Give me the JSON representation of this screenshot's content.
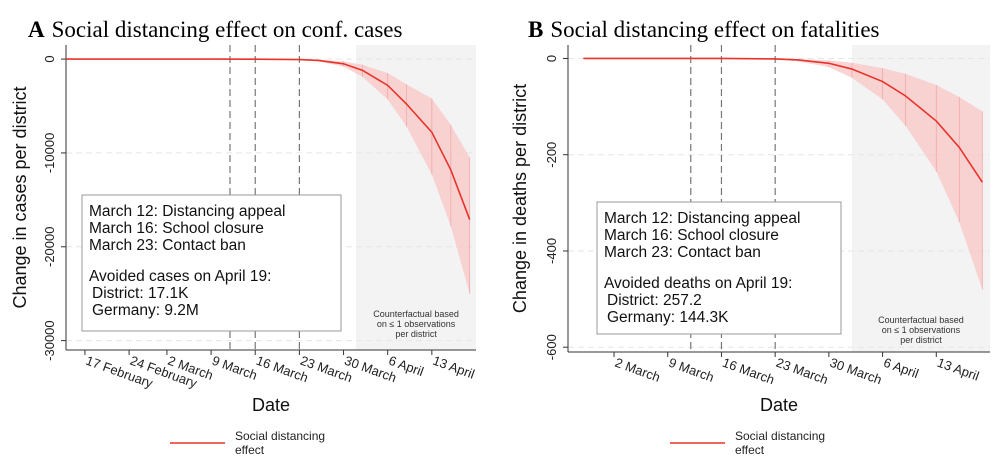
{
  "chart_data": [
    {
      "type": "line",
      "label": "A",
      "title": "Social distancing effect on conf. cases",
      "xlabel": "Date",
      "ylabel": "Change in cases per district",
      "xlim": [
        "14 February",
        "20 April"
      ],
      "ylim": [
        -31000,
        1500
      ],
      "xticks": [
        "17 February",
        "24 February",
        "2 March",
        "9 March",
        "16 March",
        "23 March",
        "30 March",
        "6 April",
        "13 April"
      ],
      "yticks": [
        0,
        -10000,
        -20000,
        -30000
      ],
      "grid": true,
      "x": [
        "14 February",
        "9 March",
        "16 March",
        "23 March",
        "26 March",
        "30 March",
        "2 April",
        "6 April",
        "9 April",
        "13 April",
        "16 April",
        "19 April"
      ],
      "series": [
        {
          "name": "Social distancing effect",
          "color": "#e8332a",
          "values": [
            0,
            0,
            -10,
            -50,
            -150,
            -500,
            -1200,
            -2800,
            -4800,
            -7800,
            -11800,
            -17100
          ]
        }
      ],
      "band": {
        "color": "#f9c6c6",
        "lower": [
          0,
          0,
          -20,
          -80,
          -250,
          -800,
          -1900,
          -4300,
          -7200,
          -12300,
          -17800,
          -25000
        ],
        "upper": [
          0,
          0,
          0,
          -20,
          -60,
          -250,
          -600,
          -1500,
          -2700,
          -4200,
          -7000,
          -10500
        ]
      },
      "events": [
        "12 March",
        "16 March",
        "23 March"
      ],
      "events_text": [
        "March 12: Distancing appeal",
        "March 16: School closure",
        "March 23: Contact ban"
      ],
      "summary": [
        "Avoided cases on April 19:",
        "District:  17.1K",
        "Germany: 9.2M"
      ],
      "shade_from": "1 April",
      "shade_note": [
        "Counterfactual based",
        "on ≤ 1 observations",
        "per district"
      ]
    },
    {
      "type": "line",
      "label": "B",
      "title": "Social distancing effect on fatalities",
      "xlabel": "Date",
      "ylabel": "Change in deaths per district",
      "xlim": [
        "24 February",
        "20 April"
      ],
      "ylim": [
        -610,
        28
      ],
      "xticks": [
        "2 March",
        "9 March",
        "16 March",
        "23 March",
        "30 March",
        "6 April",
        "13 April"
      ],
      "yticks": [
        0,
        -200,
        -400,
        -600
      ],
      "grid": true,
      "x": [
        "26 February",
        "9 March",
        "16 March",
        "23 March",
        "26 March",
        "30 March",
        "2 April",
        "6 April",
        "9 April",
        "13 April",
        "16 April",
        "19 April"
      ],
      "series": [
        {
          "name": "Social distancing effect",
          "color": "#e8332a",
          "values": [
            0,
            0,
            0,
            -1,
            -3,
            -10,
            -22,
            -48,
            -78,
            -130,
            -185,
            -257.2
          ]
        }
      ],
      "band": {
        "color": "#f9c6c6",
        "lower": [
          0,
          0,
          0,
          -2,
          -6,
          -18,
          -40,
          -85,
          -140,
          -235,
          -340,
          -480
        ],
        "upper": [
          0,
          0,
          0,
          0,
          -1,
          -4,
          -9,
          -20,
          -32,
          -55,
          -80,
          -110
        ]
      },
      "events": [
        "12 March",
        "16 March",
        "23 March"
      ],
      "events_text": [
        "March 12: Distancing appeal",
        "March 16: School closure",
        "March 23: Contact ban"
      ],
      "summary": [
        "Avoided deaths on April 19:",
        "District:  257.2",
        "Germany: 144.3K"
      ],
      "shade_from": "2 April",
      "shade_note": [
        "Counterfactual based",
        "on ≤ 1 observations",
        "per district"
      ]
    }
  ]
}
